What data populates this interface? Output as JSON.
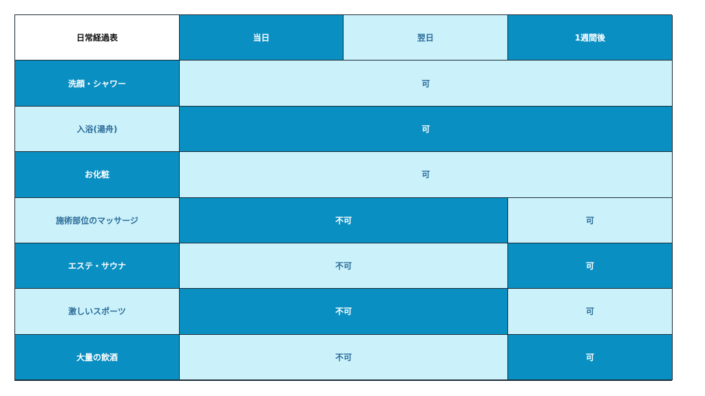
{
  "colors": {
    "dark": "#0a8fc2",
    "light": "#cbf2fb",
    "light_text": "#2b6b98"
  },
  "header": [
    {
      "text": "日常経過表",
      "style": "white"
    },
    {
      "text": "当日",
      "style": "dark"
    },
    {
      "text": "翌日",
      "style": "light"
    },
    {
      "text": "1週間後",
      "style": "dark"
    }
  ],
  "rows": [
    {
      "label": "洗顔・シャワー",
      "label_style": "dark",
      "cells": [
        {
          "text": "可",
          "span": 3,
          "style": "light"
        }
      ]
    },
    {
      "label": "入浴(湯舟)",
      "label_style": "light",
      "cells": [
        {
          "text": "可",
          "span": 3,
          "style": "dark"
        }
      ]
    },
    {
      "label": "お化粧",
      "label_style": "dark",
      "cells": [
        {
          "text": "可",
          "span": 3,
          "style": "light"
        }
      ]
    },
    {
      "label": "施術部位のマッサージ",
      "label_style": "light",
      "cells": [
        {
          "text": "不可",
          "span": 2,
          "style": "dark"
        },
        {
          "text": "可",
          "span": 1,
          "style": "light"
        }
      ]
    },
    {
      "label": "エステ・サウナ",
      "label_style": "dark",
      "cells": [
        {
          "text": "不可",
          "span": 2,
          "style": "light"
        },
        {
          "text": "可",
          "span": 1,
          "style": "dark"
        }
      ]
    },
    {
      "label": "激しいスポーツ",
      "label_style": "light",
      "cells": [
        {
          "text": "不可",
          "span": 2,
          "style": "dark"
        },
        {
          "text": "可",
          "span": 1,
          "style": "light"
        }
      ]
    },
    {
      "label": "大量の飲酒",
      "label_style": "dark",
      "cells": [
        {
          "text": "不可",
          "span": 2,
          "style": "light"
        },
        {
          "text": "可",
          "span": 1,
          "style": "dark"
        }
      ]
    }
  ]
}
